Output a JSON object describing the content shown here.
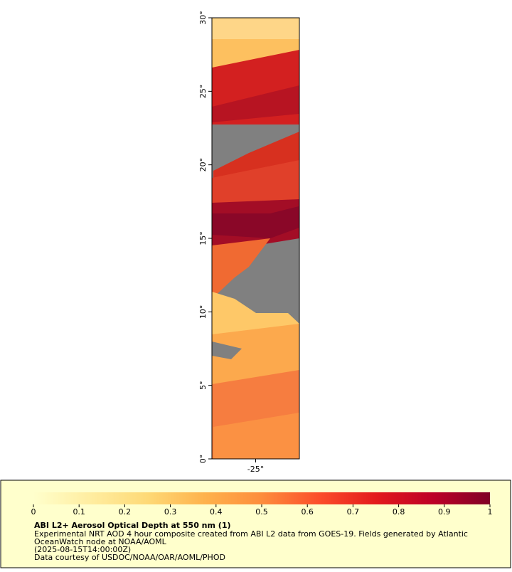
{
  "chart_data": {
    "type": "map",
    "xlim": [
      -28,
      -22
    ],
    "ylim": [
      0,
      30
    ],
    "xticks": [
      {
        "value": -25,
        "label": "-25°"
      }
    ],
    "yticks": [
      {
        "value": 0,
        "label": "0°"
      },
      {
        "value": 5,
        "label": "5°"
      },
      {
        "value": 10,
        "label": "10°"
      },
      {
        "value": 15,
        "label": "15°"
      },
      {
        "value": 20,
        "label": "20°"
      },
      {
        "value": 25,
        "label": "25°"
      },
      {
        "value": 30,
        "label": "30°"
      }
    ],
    "colorbar": {
      "range": [
        0,
        1
      ],
      "ticks": [
        0,
        0.1,
        0.2,
        0.3,
        0.4,
        0.5,
        0.6,
        0.7,
        0.8,
        0.9,
        1
      ],
      "colors": [
        "#ffffcc",
        "#ffeda0",
        "#fed976",
        "#feb24c",
        "#fd8d3c",
        "#fc4e2a",
        "#e31a1c",
        "#bd0026",
        "#800026"
      ]
    },
    "title": "ABI L2+ Aerosol Optical Depth at 550 nm (1)",
    "description": [
      "Experimental NRT AOD 4 hour composite created from ABI L2 data from GOES-19. Fields generated by Atlantic",
      "OceanWatch node at NOAA/AOML",
      "(2025-08-15T14:00:00Z)",
      "Data courtesy of USDOC/NOAA/OAR/AOML/PHOD"
    ]
  }
}
